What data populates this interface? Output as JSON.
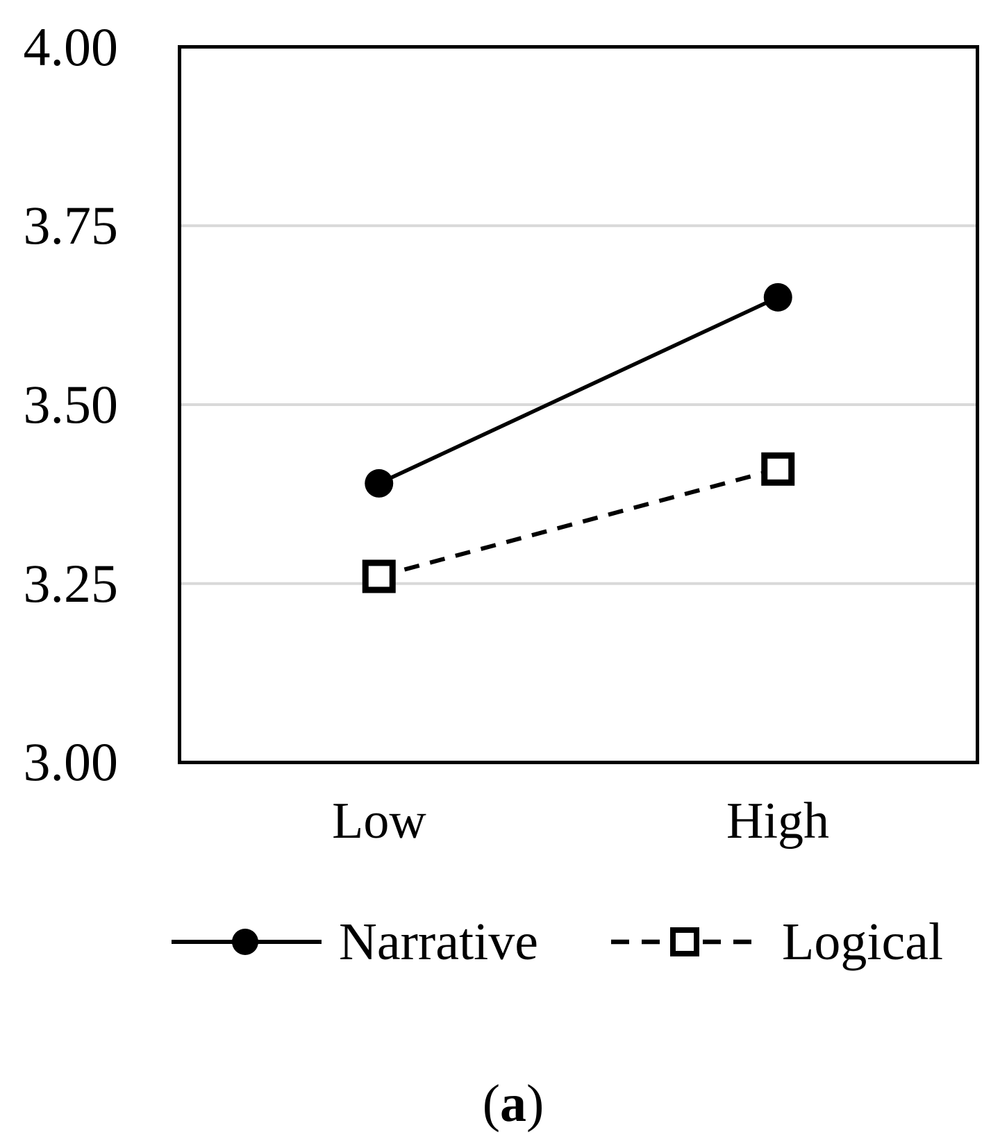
{
  "chart_data": {
    "type": "line",
    "title": "",
    "xlabel": "",
    "ylabel": "",
    "categories": [
      "Low",
      "High"
    ],
    "series": [
      {
        "name": "Narrative",
        "values": [
          3.39,
          3.65
        ],
        "line_style": "solid",
        "marker": "filled-circle",
        "color": "#000000"
      },
      {
        "name": "Logical",
        "values": [
          3.26,
          3.41
        ],
        "line_style": "dashed",
        "marker": "open-square",
        "color": "#000000"
      }
    ],
    "ylim": [
      3.0,
      4.0
    ],
    "yticks": [
      4.0,
      3.75,
      3.5,
      3.25,
      3.0
    ],
    "ytick_labels": [
      "4.00",
      "3.75",
      "3.50",
      "3.25",
      "3.00"
    ],
    "grid": "horizontal gridlines at 3.25, 3.50, 3.75",
    "gridline_color": "#D9D9D9",
    "axis_color": "#000000",
    "legend_position": "bottom"
  },
  "caption": {
    "open": "(",
    "letter": "a",
    "close": ")"
  }
}
